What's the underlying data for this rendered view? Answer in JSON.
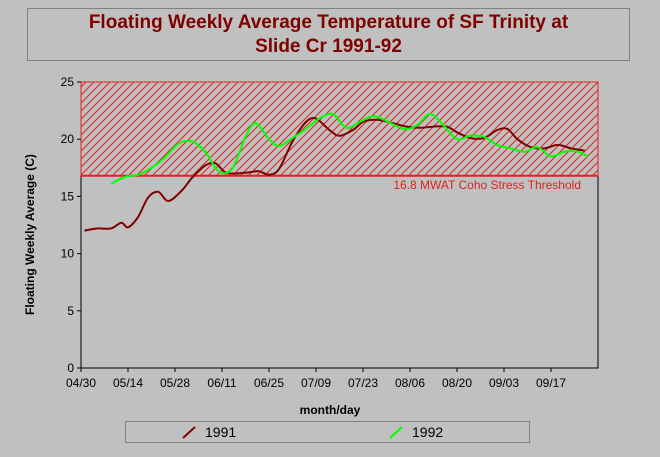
{
  "chart_data": {
    "type": "line",
    "title": "Floating Weekly Average Temperature of SF Trinity at Slide Cr 1991-92",
    "xlabel": "month/day",
    "ylabel": "Floating Weekly Average  (C)",
    "xlim": [
      "04/30",
      "10/01"
    ],
    "ylim": [
      0,
      25
    ],
    "yticks": [
      0,
      5,
      10,
      15,
      20,
      25
    ],
    "xticks": [
      "04/30",
      "05/14",
      "05/28",
      "06/11",
      "06/25",
      "07/09",
      "07/23",
      "08/06",
      "08/20",
      "09/03",
      "09/17"
    ],
    "threshold": {
      "value": 16.8,
      "label": "16.8 MWAT Coho Stress Threshold",
      "color": "#e02020"
    },
    "series": [
      {
        "name": "1991",
        "color": "#800000",
        "x": [
          "05/01",
          "05/05",
          "05/09",
          "05/12",
          "05/14",
          "05/17",
          "05/20",
          "05/23",
          "05/26",
          "05/30",
          "06/02",
          "06/06",
          "06/09",
          "06/12",
          "06/15",
          "06/19",
          "06/22",
          "06/25",
          "06/28",
          "07/02",
          "07/06",
          "07/09",
          "07/13",
          "07/16",
          "07/20",
          "07/23",
          "07/27",
          "08/01",
          "08/05",
          "08/09",
          "08/13",
          "08/17",
          "08/20",
          "08/24",
          "08/28",
          "09/01",
          "09/04",
          "09/07",
          "09/11",
          "09/15",
          "09/19",
          "09/23",
          "09/27"
        ],
        "values": [
          12.0,
          12.2,
          12.2,
          12.7,
          12.3,
          13.2,
          14.9,
          15.4,
          14.6,
          15.5,
          16.6,
          17.7,
          17.9,
          17.1,
          17.0,
          17.1,
          17.2,
          16.9,
          17.4,
          19.8,
          21.5,
          21.8,
          20.8,
          20.3,
          20.8,
          21.5,
          21.7,
          21.4,
          21.1,
          21.0,
          21.1,
          21.1,
          20.6,
          20.1,
          20.1,
          20.8,
          20.9,
          20.0,
          19.3,
          19.2,
          19.5,
          19.2,
          19.0
        ]
      },
      {
        "name": "1992",
        "color": "#00ff00",
        "x": [
          "05/09",
          "05/13",
          "05/17",
          "05/21",
          "05/25",
          "05/29",
          "06/02",
          "06/06",
          "06/10",
          "06/14",
          "06/18",
          "06/21",
          "06/25",
          "06/28",
          "07/02",
          "07/06",
          "07/10",
          "07/14",
          "07/18",
          "07/22",
          "07/26",
          "07/30",
          "08/04",
          "08/08",
          "08/12",
          "08/16",
          "08/20",
          "08/24",
          "08/28",
          "09/01",
          "09/05",
          "09/09",
          "09/13",
          "09/17",
          "09/21",
          "09/25",
          "09/28"
        ],
        "values": [
          16.1,
          16.7,
          16.9,
          17.5,
          18.4,
          19.6,
          19.8,
          18.9,
          17.2,
          17.4,
          20.2,
          21.4,
          20.0,
          19.4,
          20.1,
          20.9,
          21.8,
          22.2,
          21.0,
          21.5,
          22.0,
          21.6,
          20.9,
          21.2,
          22.2,
          21.2,
          20.0,
          20.3,
          20.2,
          19.5,
          19.2,
          18.9,
          19.3,
          18.5,
          18.9,
          18.9,
          18.5
        ]
      }
    ],
    "legend_position": "bottom"
  }
}
